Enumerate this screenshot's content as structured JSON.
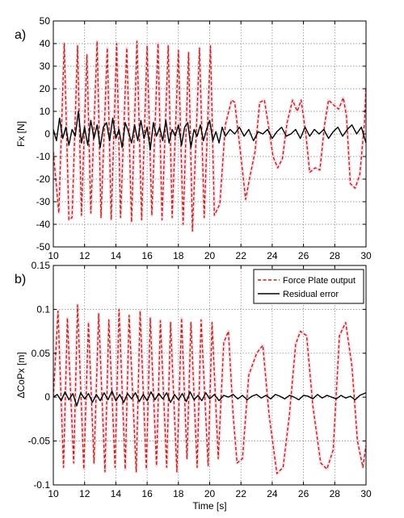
{
  "colors": {
    "force": "#b22a1a",
    "force_glow": "#f4c2d8",
    "residual": "#000000",
    "grid": "#808080",
    "axes": "#000000"
  },
  "chart_data": [
    {
      "type": "line",
      "panel_label": "a)",
      "ylabel": "Fx [N]",
      "xlabel": "",
      "xlim": [
        10,
        30
      ],
      "ylim": [
        -50,
        50
      ],
      "xticks": [
        10,
        12,
        14,
        16,
        18,
        20,
        22,
        24,
        26,
        28,
        30
      ],
      "yticks": [
        -50,
        -40,
        -30,
        -20,
        -10,
        0,
        10,
        20,
        30,
        40,
        50
      ],
      "grid": true,
      "legend": null,
      "series": [
        {
          "key": "force",
          "style": "dashed",
          "x": [
            10.0,
            10.35,
            10.7,
            11.0,
            11.2,
            11.55,
            11.8,
            12.15,
            12.4,
            12.8,
            13.05,
            13.45,
            13.7,
            14.05,
            14.3,
            14.7,
            15.0,
            15.35,
            15.65,
            16.0,
            16.3,
            16.7,
            16.95,
            17.35,
            17.6,
            18.0,
            18.3,
            18.65,
            18.9,
            19.35,
            19.65,
            20.05,
            20.3,
            20.65,
            21.0,
            21.4,
            21.6,
            22.0,
            22.3,
            22.6,
            22.9,
            23.2,
            23.5,
            23.8,
            24.05,
            24.35,
            24.65,
            24.95,
            25.3,
            25.6,
            25.85,
            26.15,
            26.4,
            26.75,
            27.05,
            27.35,
            27.6,
            27.9,
            28.25,
            28.55,
            28.75,
            29.0,
            29.3,
            29.6,
            29.9,
            30.0
          ],
          "y": [
            -8,
            -35,
            40,
            -38,
            -37,
            39,
            -36,
            35,
            -35,
            41,
            -37,
            38,
            -38,
            40,
            -37,
            38,
            -39,
            41,
            -38,
            39,
            -36,
            40,
            -38,
            39,
            -37,
            37,
            -40,
            36,
            -43,
            38,
            -37,
            39,
            -36,
            -31,
            4,
            15,
            14,
            -10,
            -29,
            -18,
            -8,
            14,
            15,
            2,
            -10,
            -15,
            -11,
            5,
            15,
            10,
            15,
            0,
            -17,
            -15,
            -16,
            4,
            15,
            13,
            11,
            16,
            8,
            -22,
            -24,
            -18,
            5,
            21
          ]
        },
        {
          "key": "residual",
          "style": "solid",
          "x": [
            10.0,
            10.2,
            10.4,
            10.6,
            10.8,
            11.0,
            11.2,
            11.4,
            11.6,
            11.8,
            12.0,
            12.2,
            12.4,
            12.6,
            12.8,
            13.0,
            13.2,
            13.4,
            13.6,
            13.8,
            14.0,
            14.2,
            14.4,
            14.6,
            14.8,
            15.0,
            15.2,
            15.4,
            15.6,
            15.8,
            16.0,
            16.2,
            16.4,
            16.6,
            16.8,
            17.0,
            17.2,
            17.4,
            17.6,
            17.8,
            18.0,
            18.2,
            18.4,
            18.6,
            18.8,
            19.0,
            19.2,
            19.4,
            19.6,
            19.8,
            20.0,
            20.2,
            20.4,
            20.6,
            20.8,
            21.0,
            21.3,
            21.6,
            21.9,
            22.2,
            22.5,
            22.8,
            23.1,
            23.4,
            23.7,
            24.0,
            24.3,
            24.6,
            24.9,
            25.2,
            25.5,
            25.8,
            26.1,
            26.4,
            26.7,
            27.0,
            27.3,
            27.6,
            27.9,
            28.2,
            28.5,
            28.8,
            29.1,
            29.4,
            29.7,
            30.0
          ],
          "y": [
            2,
            -3,
            7,
            -2,
            3,
            -5,
            2,
            -1,
            10,
            -4,
            3,
            -5,
            6,
            -2,
            4,
            -6,
            3,
            5,
            -3,
            7,
            -2,
            2,
            -6,
            5,
            1,
            -4,
            4,
            -3,
            6,
            -2,
            3,
            -7,
            5,
            -1,
            3,
            -3,
            6,
            -4,
            2,
            -1,
            4,
            -5,
            3,
            5,
            -6,
            2,
            -1,
            4,
            -3,
            2,
            6,
            -3,
            1,
            -4,
            3,
            -1,
            2,
            0,
            3,
            -1,
            2,
            -3,
            1,
            0,
            2,
            -2,
            1,
            3,
            -1,
            0,
            2,
            -2,
            3,
            -1,
            2,
            0,
            2,
            -2,
            1,
            3,
            -1,
            2,
            4,
            0,
            3,
            -4
          ]
        }
      ]
    },
    {
      "type": "line",
      "panel_label": "b)",
      "ylabel": "ΔCoPx [m]",
      "xlabel": "Time [s]",
      "xlim": [
        10,
        30
      ],
      "ylim": [
        -0.1,
        0.15
      ],
      "xticks": [
        10,
        12,
        14,
        16,
        18,
        20,
        22,
        24,
        26,
        28,
        30
      ],
      "yticks": [
        -0.1,
        -0.05,
        0,
        0.05,
        0.1,
        0.15
      ],
      "ytick_labels": [
        "-0.1",
        "-0.05",
        "0",
        "0.05",
        "0.1",
        "0.15"
      ],
      "grid": true,
      "legend": {
        "position": "top-right",
        "entries": [
          {
            "key": "force",
            "label": "Force Plate output"
          },
          {
            "key": "residual",
            "label": "Residual error"
          }
        ]
      },
      "series": [
        {
          "key": "force",
          "style": "dashed",
          "x": [
            10.0,
            10.3,
            10.65,
            10.9,
            11.3,
            11.55,
            11.95,
            12.25,
            12.6,
            12.9,
            13.3,
            13.55,
            13.95,
            14.2,
            14.6,
            14.85,
            15.3,
            15.55,
            15.95,
            16.2,
            16.6,
            16.85,
            17.25,
            17.5,
            17.9,
            18.2,
            18.55,
            18.8,
            19.2,
            19.45,
            19.9,
            20.15,
            20.55,
            20.9,
            21.2,
            21.5,
            21.75,
            22.1,
            22.5,
            23.0,
            23.4,
            23.8,
            24.3,
            24.7,
            25.1,
            25.5,
            25.8,
            26.2,
            26.6,
            27.1,
            27.5,
            27.9,
            28.3,
            28.7,
            29.1,
            29.45,
            29.8,
            30.0
          ],
          "y": [
            0.0,
            0.098,
            -0.08,
            0.09,
            -0.075,
            0.105,
            -0.082,
            0.085,
            -0.075,
            0.095,
            -0.085,
            0.088,
            -0.08,
            0.1,
            -0.082,
            0.093,
            -0.085,
            0.098,
            -0.082,
            0.09,
            -0.078,
            0.087,
            -0.08,
            0.085,
            -0.085,
            0.09,
            -0.07,
            0.085,
            -0.08,
            0.088,
            -0.078,
            0.085,
            -0.07,
            0.062,
            0.075,
            -0.02,
            -0.075,
            -0.07,
            0.025,
            0.05,
            0.059,
            -0.02,
            -0.087,
            -0.08,
            -0.02,
            0.06,
            0.075,
            0.07,
            -0.01,
            -0.075,
            -0.082,
            -0.06,
            0.07,
            0.085,
            0.035,
            -0.05,
            -0.08,
            -0.055
          ]
        },
        {
          "key": "residual",
          "style": "solid",
          "x": [
            10.0,
            10.25,
            10.5,
            10.75,
            11.0,
            11.25,
            11.5,
            11.75,
            12.0,
            12.25,
            12.5,
            12.75,
            13.0,
            13.25,
            13.5,
            13.75,
            14.0,
            14.25,
            14.5,
            14.75,
            15.0,
            15.25,
            15.5,
            15.75,
            16.0,
            16.25,
            16.5,
            16.75,
            17.0,
            17.25,
            17.5,
            17.75,
            18.0,
            18.25,
            18.5,
            18.75,
            19.0,
            19.25,
            19.5,
            19.75,
            20.0,
            20.3,
            20.6,
            20.9,
            21.2,
            21.5,
            21.8,
            22.1,
            22.4,
            22.7,
            23.0,
            23.3,
            23.6,
            23.9,
            24.2,
            24.5,
            24.8,
            25.1,
            25.4,
            25.7,
            26.0,
            26.3,
            26.6,
            26.9,
            27.2,
            27.5,
            27.8,
            28.1,
            28.4,
            28.7,
            29.0,
            29.3,
            29.6,
            30.0
          ],
          "y": [
            0.0,
            0.003,
            -0.004,
            0.006,
            -0.003,
            0.004,
            -0.01,
            0.005,
            -0.002,
            0.004,
            -0.006,
            0.003,
            -0.004,
            0.005,
            -0.003,
            0.007,
            -0.004,
            0.003,
            -0.006,
            0.004,
            -0.002,
            0.005,
            -0.005,
            0.003,
            -0.004,
            0.006,
            -0.003,
            0.004,
            -0.002,
            0.005,
            -0.006,
            0.003,
            -0.003,
            0.004,
            -0.005,
            0.006,
            -0.003,
            0.002,
            -0.004,
            0.005,
            -0.002,
            0.003,
            -0.004,
            0.002,
            0.0,
            0.003,
            -0.002,
            0.002,
            -0.003,
            0.001,
            0.003,
            -0.001,
            0.002,
            -0.002,
            0.003,
            0.001,
            -0.002,
            0.002,
            0.0,
            -0.003,
            0.002,
            0.001,
            -0.002,
            0.003,
            -0.001,
            0.002,
            0.0,
            -0.002,
            0.002,
            -0.001,
            0.001,
            -0.003,
            0.002,
            0.005
          ]
        }
      ]
    }
  ]
}
